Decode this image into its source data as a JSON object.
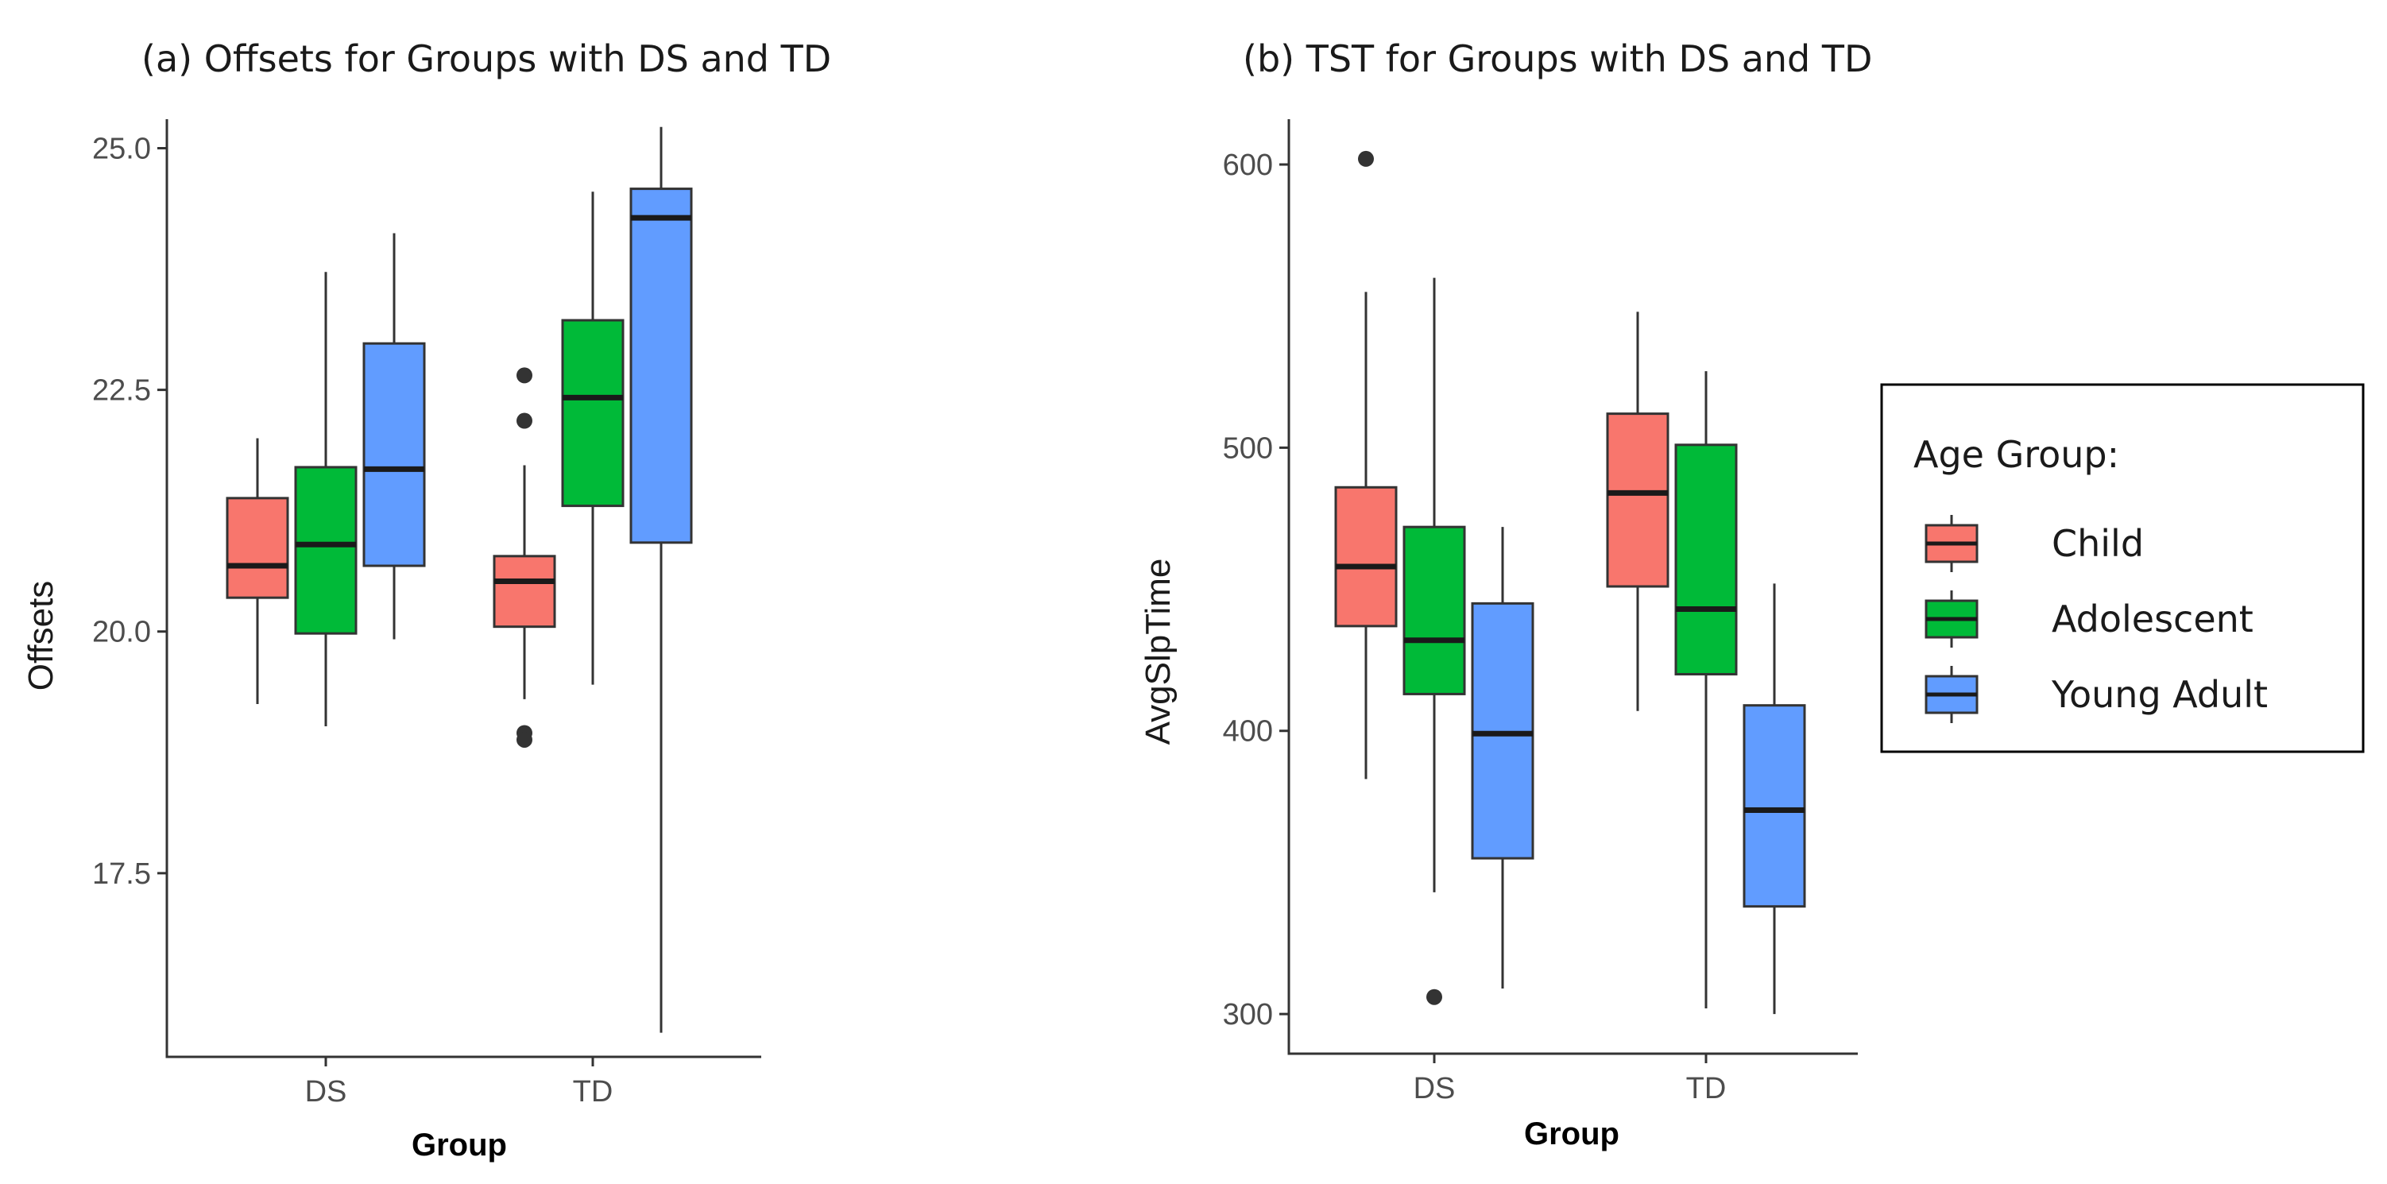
{
  "chart_data": [
    {
      "type": "box",
      "title": "(a) Offsets for Groups with DS and TD",
      "xlabel": "Group",
      "ylabel": "Offsets",
      "categories": [
        "DS",
        "TD"
      ],
      "ylim": [
        15.6,
        25.3
      ],
      "yticks": [
        17.5,
        20.0,
        22.5,
        25.0
      ],
      "ytick_labels": [
        "17.5",
        "20.0",
        "22.5",
        "25.0"
      ],
      "series": [
        {
          "name": "Child",
          "boxes": [
            {
              "group": "DS",
              "lower": 19.25,
              "q1": 20.35,
              "median": 20.68,
              "q3": 21.38,
              "upper": 22.0,
              "outliers": []
            },
            {
              "group": "TD",
              "lower": 19.3,
              "q1": 20.05,
              "median": 20.52,
              "q3": 20.78,
              "upper": 21.72,
              "outliers": [
                22.65,
                22.18,
                18.95,
                18.88
              ]
            }
          ]
        },
        {
          "name": "Adolescent",
          "boxes": [
            {
              "group": "DS",
              "lower": 19.02,
              "q1": 19.98,
              "median": 20.9,
              "q3": 21.7,
              "upper": 23.72,
              "outliers": []
            },
            {
              "group": "TD",
              "lower": 19.45,
              "q1": 21.3,
              "median": 22.42,
              "q3": 23.22,
              "upper": 24.55,
              "outliers": []
            }
          ]
        },
        {
          "name": "Young Adult",
          "boxes": [
            {
              "group": "DS",
              "lower": 19.92,
              "q1": 20.68,
              "median": 21.68,
              "q3": 22.98,
              "upper": 24.12,
              "outliers": []
            },
            {
              "group": "TD",
              "lower": 15.85,
              "q1": 20.92,
              "median": 24.28,
              "q3": 24.58,
              "upper": 25.22,
              "outliers": []
            }
          ]
        }
      ]
    },
    {
      "type": "box",
      "title": "(b) TST for Groups with DS and TD",
      "xlabel": "Group",
      "ylabel": "AvgSlpTime",
      "categories": [
        "DS",
        "TD"
      ],
      "ylim": [
        286,
        616
      ],
      "yticks": [
        300,
        400,
        500,
        600
      ],
      "ytick_labels": [
        "300",
        "400",
        "500",
        "600"
      ],
      "series": [
        {
          "name": "Child",
          "boxes": [
            {
              "group": "DS",
              "lower": 383,
              "q1": 437,
              "median": 458,
              "q3": 486,
              "upper": 555,
              "outliers": [
                602
              ]
            },
            {
              "group": "TD",
              "lower": 407,
              "q1": 451,
              "median": 484,
              "q3": 512,
              "upper": 548,
              "outliers": []
            }
          ]
        },
        {
          "name": "Adolescent",
          "boxes": [
            {
              "group": "DS",
              "lower": 343,
              "q1": 413,
              "median": 432,
              "q3": 472,
              "upper": 560,
              "outliers": [
                306
              ]
            },
            {
              "group": "TD",
              "lower": 302,
              "q1": 420,
              "median": 443,
              "q3": 501,
              "upper": 527,
              "outliers": []
            }
          ]
        },
        {
          "name": "Young Adult",
          "boxes": [
            {
              "group": "DS",
              "lower": 309,
              "q1": 355,
              "median": 399,
              "q3": 445,
              "upper": 472,
              "outliers": []
            },
            {
              "group": "TD",
              "lower": 300,
              "q1": 338,
              "median": 372,
              "q3": 409,
              "upper": 452,
              "outliers": []
            }
          ]
        }
      ]
    }
  ],
  "legend": {
    "title": "Age Group:",
    "items": [
      {
        "label": "Child",
        "color": "#F8766D"
      },
      {
        "label": "Adolescent",
        "color": "#00BA38"
      },
      {
        "label": "Young Adult",
        "color": "#619CFF"
      }
    ]
  }
}
